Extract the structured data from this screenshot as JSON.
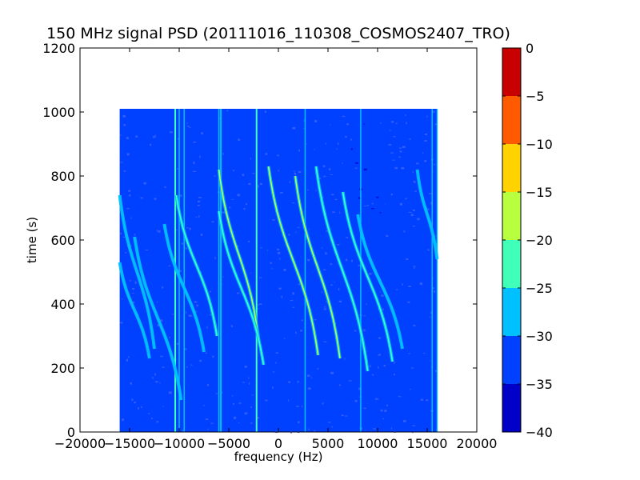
{
  "chart_data": {
    "type": "heatmap",
    "title": "150 MHz signal PSD (20111016_110308_COSMOS2407_TRO)",
    "xlabel": "frequency (Hz)",
    "ylabel": "time (s)",
    "xlim": [
      -20000,
      20000
    ],
    "ylim": [
      0,
      1200
    ],
    "xticks": [
      -20000,
      -15000,
      -10000,
      -5000,
      0,
      5000,
      10000,
      15000,
      20000
    ],
    "xtick_labels": [
      "−20000",
      "−15000",
      "−10000",
      "−5000",
      "0",
      "5000",
      "10000",
      "15000",
      "20000"
    ],
    "yticks": [
      0,
      200,
      400,
      600,
      800,
      1000,
      1200
    ],
    "ytick_labels": [
      "0",
      "200",
      "400",
      "600",
      "800",
      "1000",
      "1200"
    ],
    "data_extent": {
      "x": [
        -16000,
        16000
      ],
      "y": [
        0,
        1010
      ]
    },
    "background_level_db": -35,
    "colorbar": {
      "levels": [
        -40,
        -35,
        -30,
        -25,
        -20,
        -15,
        -10,
        -5,
        0
      ],
      "tick_labels": [
        "−40",
        "−35",
        "−30",
        "−25",
        "−20",
        "−15",
        "−10",
        "−5",
        "0"
      ],
      "colors": [
        "#0000c8",
        "#0040ff",
        "#00c0ff",
        "#40ffb8",
        "#b8ff40",
        "#ffd200",
        "#ff5a00",
        "#c80000"
      ]
    },
    "vertical_lines_hz": [
      -10400,
      -10000,
      -9500,
      -6000,
      -2200,
      2700,
      8300,
      15500,
      16000
    ],
    "drift_traces": [
      {
        "f_top": -16000,
        "t_top": 740,
        "f_bottom": -12500,
        "t_bottom": 260,
        "level_db": -27
      },
      {
        "f_top": -16000,
        "t_top": 530,
        "f_bottom": -13000,
        "t_bottom": 230,
        "level_db": -27
      },
      {
        "f_top": -10300,
        "t_top": 740,
        "f_bottom": -6200,
        "t_bottom": 300,
        "level_db": -25
      },
      {
        "f_top": -11500,
        "t_top": 650,
        "f_bottom": -7500,
        "t_bottom": 250,
        "level_db": -27
      },
      {
        "f_top": -6000,
        "t_top": 820,
        "f_bottom": -2000,
        "t_bottom": 290,
        "level_db": -20
      },
      {
        "f_top": -6000,
        "t_top": 690,
        "f_bottom": -1500,
        "t_bottom": 210,
        "level_db": -22
      },
      {
        "f_top": -1000,
        "t_top": 830,
        "f_bottom": 4000,
        "t_bottom": 240,
        "level_db": -17
      },
      {
        "f_top": 1700,
        "t_top": 800,
        "f_bottom": 6200,
        "t_bottom": 230,
        "level_db": -20
      },
      {
        "f_top": 3800,
        "t_top": 830,
        "f_bottom": 9000,
        "t_bottom": 190,
        "level_db": -22
      },
      {
        "f_top": 6500,
        "t_top": 750,
        "f_bottom": 11500,
        "t_bottom": 220,
        "level_db": -25
      },
      {
        "f_top": 8000,
        "t_top": 680,
        "f_bottom": 12500,
        "t_bottom": 260,
        "level_db": -27
      },
      {
        "f_top": 14000,
        "t_top": 820,
        "f_bottom": 16000,
        "t_bottom": 540,
        "level_db": -27
      },
      {
        "f_top": -14500,
        "t_top": 610,
        "f_bottom": -9800,
        "t_bottom": 100,
        "level_db": -27
      }
    ],
    "bright_line_segments": [
      {
        "f": -10400,
        "t0": 0,
        "t1": 1010,
        "level_db": -22
      },
      {
        "f": -5800,
        "t0": 0,
        "t1": 1010,
        "level_db": -27
      },
      {
        "f": -2200,
        "t0": 0,
        "t1": 1010,
        "level_db": -25
      }
    ],
    "grid": false
  }
}
